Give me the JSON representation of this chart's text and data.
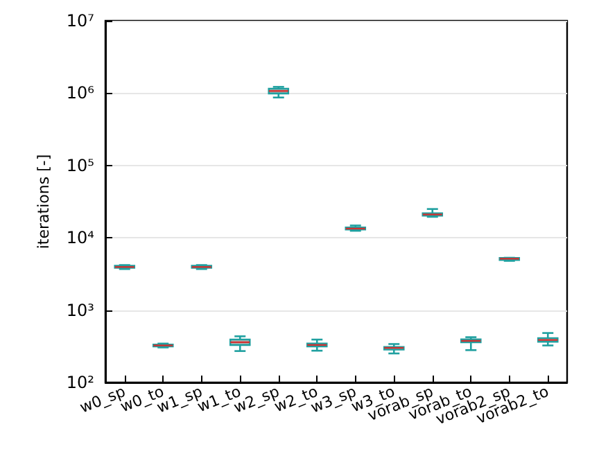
{
  "chart_data": {
    "type": "box",
    "ylabel": "iterations [-]",
    "categories": [
      "w0_sp",
      "w0_to",
      "w1_sp",
      "w1_to",
      "w2_sp",
      "w2_to",
      "w3_sp",
      "w3_to",
      "vorab_sp",
      "vorab_to",
      "vorab2_sp",
      "vorab2_to"
    ],
    "series": [
      {
        "color": "#20a0a0",
        "boxes": [
          {
            "low": 3700,
            "q1": 3850,
            "median": 3950,
            "q3": 4100,
            "high": 4200
          },
          {
            "low": 305,
            "q1": 315,
            "median": 325,
            "q3": 335,
            "high": 345
          },
          {
            "low": 3700,
            "q1": 3850,
            "median": 3950,
            "q3": 4100,
            "high": 4200
          },
          {
            "low": 272,
            "q1": 330,
            "median": 360,
            "q3": 392,
            "high": 435
          },
          {
            "low": 870000,
            "q1": 990000,
            "median": 1070000,
            "q3": 1150000,
            "high": 1220000
          },
          {
            "low": 275,
            "q1": 315,
            "median": 330,
            "q3": 345,
            "high": 392
          },
          {
            "low": 12500,
            "q1": 13000,
            "median": 13400,
            "q3": 13900,
            "high": 14800
          },
          {
            "low": 252,
            "q1": 285,
            "median": 301,
            "q3": 310,
            "high": 340
          },
          {
            "low": 19500,
            "q1": 20300,
            "median": 21000,
            "q3": 21800,
            "high": 25000
          },
          {
            "low": 280,
            "q1": 360,
            "median": 376,
            "q3": 395,
            "high": 423
          },
          {
            "low": 4800,
            "q1": 4950,
            "median": 5140,
            "q3": 5250,
            "high": 5300
          },
          {
            "low": 325,
            "q1": 365,
            "median": 387,
            "q3": 410,
            "high": 483
          }
        ]
      }
    ],
    "ylim": [
      100,
      10000000
    ],
    "yticks": [
      {
        "value": 100,
        "label": "10²"
      },
      {
        "value": 1000,
        "label": "10³"
      },
      {
        "value": 10000,
        "label": "10⁴"
      },
      {
        "value": 100000,
        "label": "10⁵"
      },
      {
        "value": 1000000,
        "label": "10⁶"
      },
      {
        "value": 10000000,
        "label": "10⁷"
      }
    ],
    "log": "y",
    "grid": "y"
  }
}
